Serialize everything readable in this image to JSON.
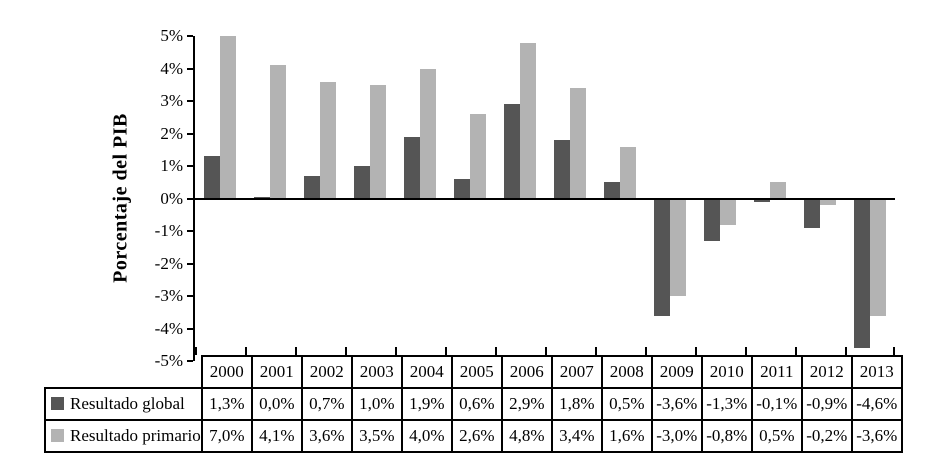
{
  "figure": {
    "background": "#ffffff"
  },
  "chart_data": {
    "type": "bar",
    "title": "",
    "ylabel": "Porcentaje del PIB",
    "xlabel": "",
    "ylim": [
      -5,
      5
    ],
    "y_tick_values": [
      5,
      4,
      3,
      2,
      1,
      0,
      -1,
      -2,
      -3,
      -4,
      -5
    ],
    "y_tick_labels": [
      "5%",
      "4%",
      "3%",
      "2%",
      "1%",
      "0%",
      "-1%",
      "-2%",
      "-3%",
      "-4%",
      "-5%"
    ],
    "categories": [
      "2000",
      "2001",
      "2002",
      "2003",
      "2004",
      "2005",
      "2006",
      "2007",
      "2008",
      "2009",
      "2010",
      "2011",
      "2012",
      "2013"
    ],
    "series": [
      {
        "name": "Resultado global",
        "color": "#555555",
        "values": [
          1.3,
          0.0,
          0.7,
          1.0,
          1.9,
          0.6,
          2.9,
          1.8,
          0.5,
          -3.6,
          -1.3,
          -0.1,
          -0.9,
          -4.6
        ],
        "display_labels": [
          "1,3%",
          "0,0%",
          "0,7%",
          "1,0%",
          "1,9%",
          "0,6%",
          "2,9%",
          "1,8%",
          "0,5%",
          "-3,6%",
          "-1,3%",
          "-0,1%",
          "-0,9%",
          "-4,6%"
        ]
      },
      {
        "name": "Resultado primario",
        "color": "#b3b3b3",
        "values": [
          7.0,
          4.1,
          3.6,
          3.5,
          4.0,
          2.6,
          4.8,
          3.4,
          1.6,
          -3.0,
          -0.8,
          0.5,
          -0.2,
          -3.6
        ],
        "display_labels": [
          "7,0%",
          "4,1%",
          "3,6%",
          "3,5%",
          "4,0%",
          "2,6%",
          "4,8%",
          "3,4%",
          "1,6%",
          "-3,0%",
          "-0,8%",
          "0,5%",
          "-0,2%",
          "-3,6%"
        ]
      }
    ],
    "bar_display_cap": 5.0,
    "grid": false,
    "legend_position": "data-table-left-column",
    "data_table_attached": true
  }
}
